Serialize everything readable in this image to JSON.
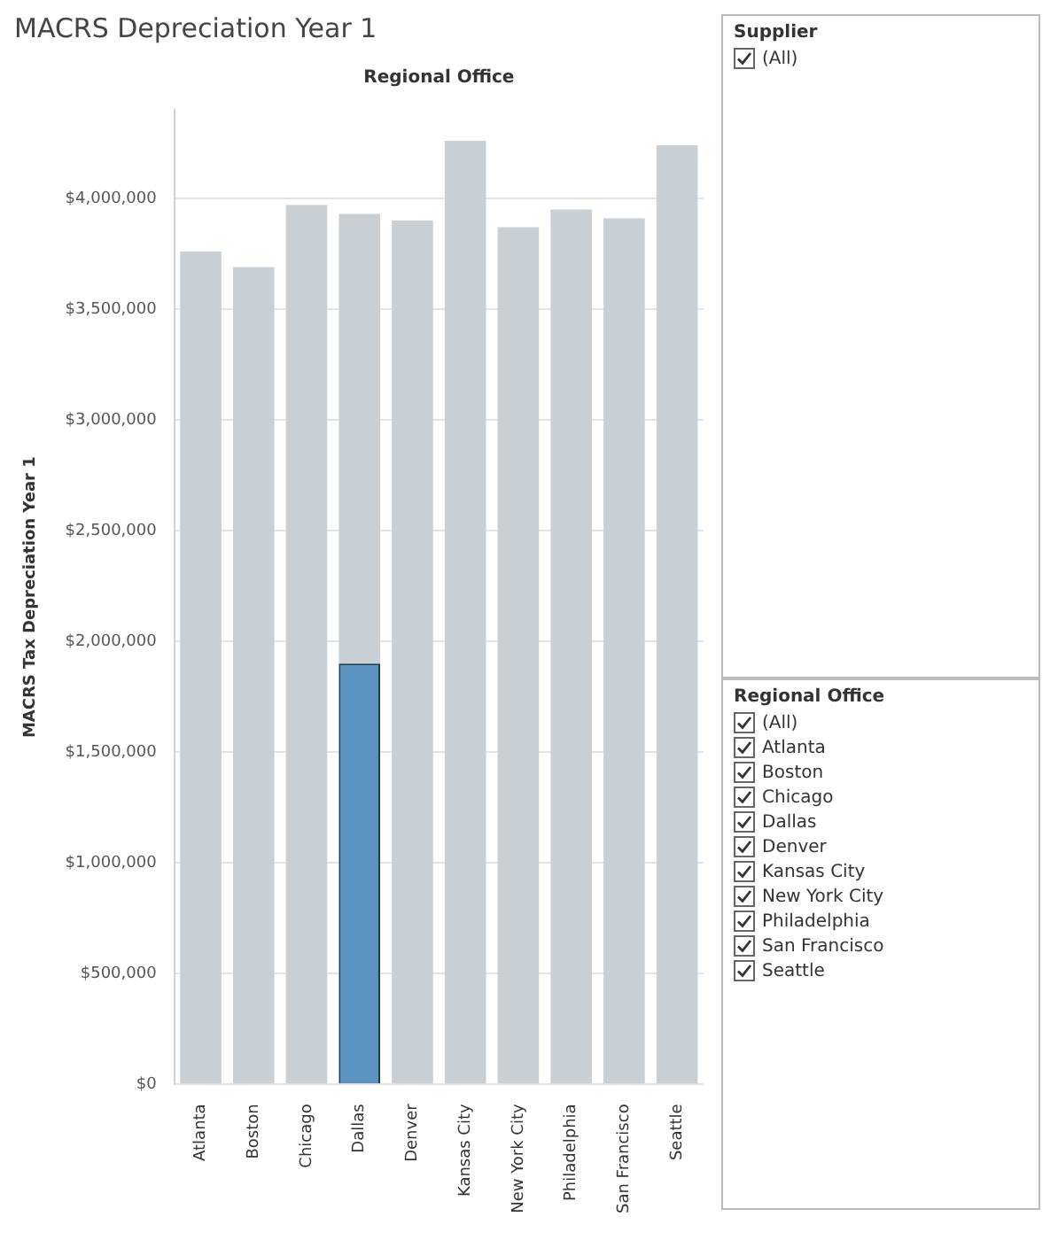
{
  "chart_data": {
    "type": "bar",
    "title": "MACRS Depreciation Year 1",
    "xlabel": "Regional Office",
    "ylabel": "MACRS Tax Depreciation Year 1",
    "categories": [
      "Atlanta",
      "Boston",
      "Chicago",
      "Dallas",
      "Denver",
      "Kansas City",
      "New York City",
      "Philadelphia",
      "San Francisco",
      "Seattle"
    ],
    "series": [
      {
        "color": "#c9d0d5",
        "values": [
          3760000,
          3690000,
          3970000,
          3930000,
          3900000,
          4260000,
          3870000,
          3950000,
          3910000,
          4240000
        ]
      },
      {
        "color": "#5a93c0",
        "values": [
          null,
          null,
          null,
          1900000,
          null,
          null,
          null,
          null,
          null,
          null
        ]
      }
    ],
    "ylim": [
      0,
      4400000
    ],
    "yticks": [
      {
        "value": 0,
        "label": "$0"
      },
      {
        "value": 500000,
        "label": "$500,000"
      },
      {
        "value": 1000000,
        "label": "$1,000,000"
      },
      {
        "value": 1500000,
        "label": "$1,500,000"
      },
      {
        "value": 2000000,
        "label": "$2,000,000"
      },
      {
        "value": 2500000,
        "label": "$2,500,000"
      },
      {
        "value": 3000000,
        "label": "$3,000,000"
      },
      {
        "value": 3500000,
        "label": "$3,500,000"
      },
      {
        "value": 4000000,
        "label": "$4,000,000"
      }
    ],
    "grid": "y",
    "legend": false,
    "annotations": [
      "Supplier",
      "(All)",
      "Regional Office",
      "(All)",
      "Atlanta",
      "Boston",
      "Chicago",
      "Dallas",
      "Denver",
      "Kansas City",
      "New York City",
      "Philadelphia",
      "San Francisco",
      "Seattle"
    ]
  }
}
